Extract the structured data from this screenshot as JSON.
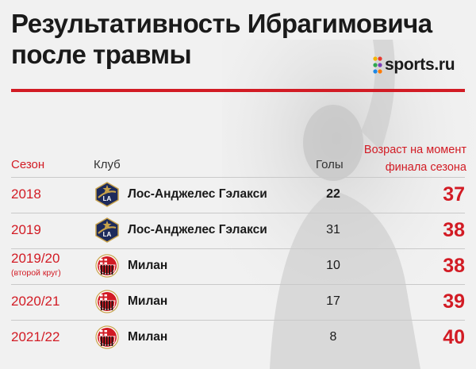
{
  "title": {
    "line1": "Результативность Ибрагимовича",
    "line2": "после травмы"
  },
  "logo": {
    "text": "sports.ru"
  },
  "colors": {
    "accent": "#d21b24",
    "text": "#1a1a1a"
  },
  "headers": {
    "season": "Сезон",
    "club": "Клуб",
    "goals": "Голы",
    "age_line1": "Возраст на момент",
    "age_line2": "финала сезона"
  },
  "chart_data": {
    "type": "table",
    "columns": [
      "Сезон",
      "Клуб",
      "Голы",
      "Возраст на момент финала сезона"
    ],
    "rows": [
      {
        "season": "2018",
        "season_note": "",
        "club": "Лос-Анджелес Гэлакси",
        "crest_icon": "la-galaxy-crest-icon",
        "goals": 22,
        "age": 37
      },
      {
        "season": "2019",
        "season_note": "",
        "club": "Лос-Анджелес Гэлакси",
        "crest_icon": "la-galaxy-crest-icon",
        "goals": 31,
        "age": 38
      },
      {
        "season": "2019/20",
        "season_note": "(второй круг)",
        "club": "Милан",
        "crest_icon": "ac-milan-crest-icon",
        "goals": 10,
        "age": 38
      },
      {
        "season": "2020/21",
        "season_note": "",
        "club": "Милан",
        "crest_icon": "ac-milan-crest-icon",
        "goals": 17,
        "age": 39
      },
      {
        "season": "2021/22",
        "season_note": "",
        "club": "Милан",
        "crest_icon": "ac-milan-crest-icon",
        "goals": 8,
        "age": 40
      }
    ]
  }
}
